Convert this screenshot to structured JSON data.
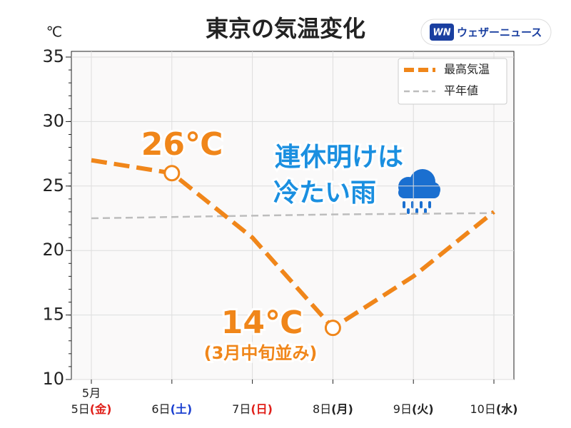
{
  "chart_data": {
    "type": "line",
    "title": "東京の気温変化",
    "y_unit": "℃",
    "month_label": "5月",
    "categories": [
      "5日",
      "6日",
      "7日",
      "8日",
      "9日",
      "10日"
    ],
    "weekdays": [
      "(金)",
      "(土)",
      "(日)",
      "(月)",
      "(火)",
      "(水)"
    ],
    "weekday_colors": [
      "#e0201a",
      "#1a3fd0",
      "#e0201a",
      "#222222",
      "#222222",
      "#222222"
    ],
    "series": [
      {
        "name": "最高気温",
        "color": "#f0861a",
        "values": [
          27,
          26,
          21,
          14,
          18,
          23
        ],
        "highlight": [
          1,
          3
        ]
      },
      {
        "name": "平年値",
        "color": "#bdbdbd",
        "values": [
          22.5,
          22.6,
          22.7,
          22.8,
          22.85,
          22.9
        ]
      }
    ],
    "ylim": [
      10,
      35
    ],
    "yticks": [
      10,
      15,
      20,
      25,
      30,
      35
    ],
    "grid": true,
    "legend": "upper right",
    "annotations": [
      "26℃",
      "14℃",
      "(3月中旬並み)",
      "連休明けは",
      "冷たい雨"
    ]
  },
  "logo": {
    "mark": "WN",
    "text": "ウェザーニュース"
  }
}
